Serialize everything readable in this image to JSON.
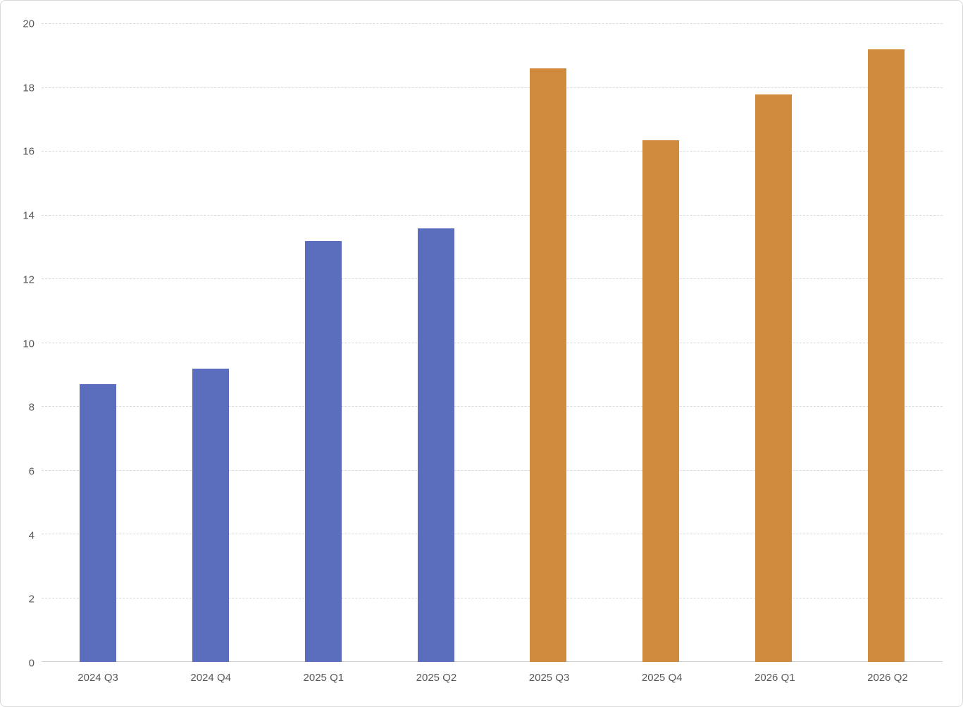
{
  "chart_data": {
    "type": "bar",
    "title": "",
    "categories": [
      "2024 Q3",
      "2024 Q4",
      "2025 Q1",
      "2025 Q2",
      "2025 Q3",
      "2025 Q4",
      "2026 Q1",
      "2026 Q2"
    ],
    "values": [
      8.7,
      9.2,
      13.2,
      13.6,
      18.6,
      16.35,
      17.8,
      19.2
    ],
    "bar_colors": [
      "#5b6ebe",
      "#5b6ebe",
      "#5b6ebe",
      "#5b6ebe",
      "#cf8a3e",
      "#cf8a3e",
      "#cf8a3e",
      "#cf8a3e"
    ],
    "xlabel": "",
    "ylabel": "",
    "ylim": [
      0,
      20
    ],
    "yticks": [
      0,
      2,
      4,
      6,
      8,
      10,
      12,
      14,
      16,
      18,
      20
    ],
    "grid": "horizontal-dashed",
    "legend_position": "none"
  },
  "colors": {
    "series_blue": "#5b6ebe",
    "series_orange": "#cf8a3e",
    "gridline": "#d9d9d9",
    "axis_text": "#595959",
    "frame_border": "#d9d9d9",
    "background": "#ffffff"
  }
}
